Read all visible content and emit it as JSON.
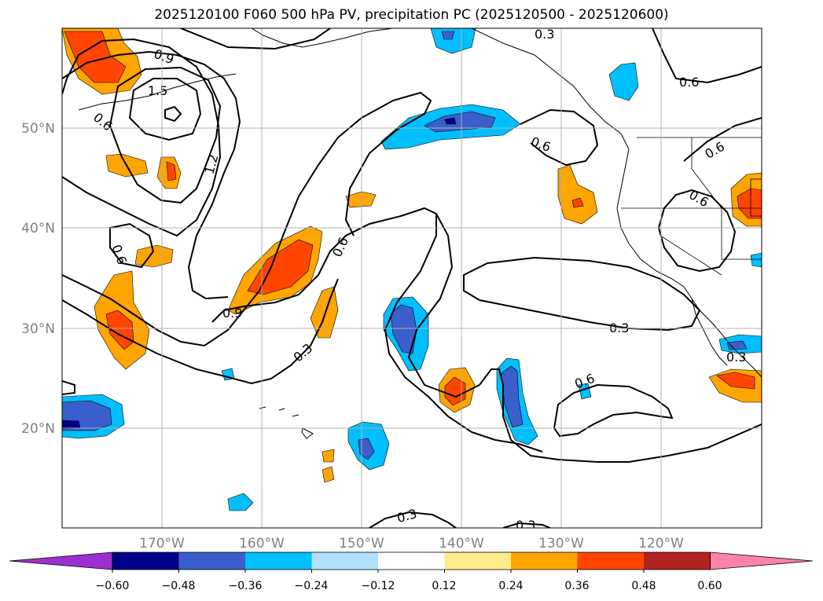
{
  "title": "2025120100 F060 500 hPa PV, precipitation PC (2025120500 - 2025120600)",
  "lat_labels": [
    "50°N",
    "40°N",
    "30°N",
    "20°N"
  ],
  "lon_labels": [
    "170°W",
    "160°W",
    "150°W",
    "140°W",
    "130°W",
    "120°W"
  ],
  "colorbar": {
    "tick_labels": [
      "−0.60",
      "−0.48",
      "−0.36",
      "−0.24",
      "−0.12",
      "0.12",
      "0.24",
      "0.36",
      "0.48",
      "0.60"
    ],
    "colors": [
      "#9b30d0",
      "#00008b",
      "#3a5fcd",
      "#00bfff",
      "#b0e2ff",
      "#ffffff",
      "#ffec8b",
      "#ffa500",
      "#ff4500",
      "#b22222",
      "#ff82ab"
    ]
  },
  "contour_labels": [
    "0.9",
    "1.5",
    "0.6",
    "1.2",
    "0.6",
    "0.9",
    "0.6",
    "0.3",
    "0.6",
    "0.3",
    "0.6",
    "0.6",
    "0.6",
    "0.3",
    "0.6",
    "0.3",
    "0.3",
    "0.3",
    "0.6"
  ],
  "colors": {
    "contour": "#000000",
    "grid": "#b0b0b0",
    "coast": "#000000"
  }
}
